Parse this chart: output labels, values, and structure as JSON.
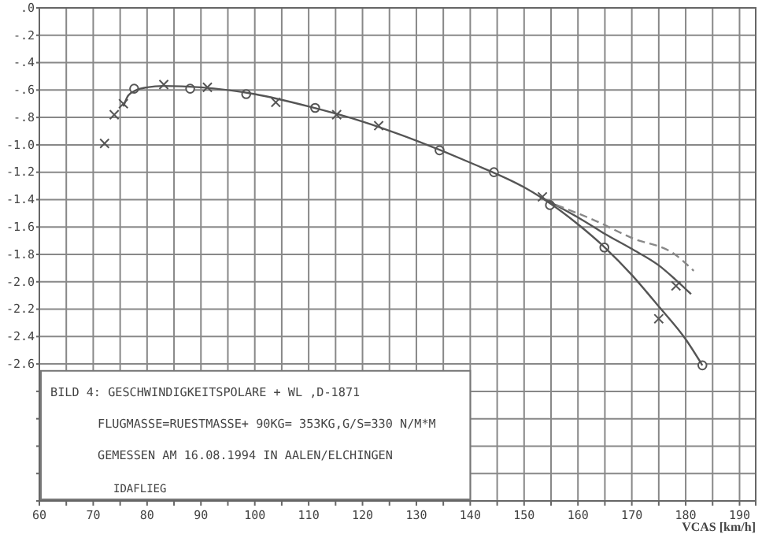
{
  "chart_data": {
    "type": "scatter",
    "xlabel": "VCAS [km/h]",
    "xlim": [
      60,
      193
    ],
    "xticks": [
      60,
      {
        "value": 65,
        "label": null
      },
      70,
      {
        "value": 75,
        "label": null
      },
      80,
      {
        "value": 85,
        "label": null
      },
      90,
      {
        "value": 95,
        "label": null
      },
      100,
      {
        "value": 105,
        "label": null
      },
      110,
      {
        "value": 115,
        "label": null
      },
      120,
      {
        "value": 125,
        "label": null
      },
      130,
      {
        "value": 135,
        "label": null
      },
      140,
      {
        "value": 145,
        "label": null
      },
      150,
      {
        "value": 155,
        "label": null
      },
      160,
      {
        "value": 165,
        "label": null
      },
      170,
      {
        "value": 175,
        "label": null
      },
      180,
      {
        "value": 185,
        "label": null
      },
      190
    ],
    "ylim": [
      -3.6,
      0
    ],
    "yticks": [
      {
        "value": 0,
        "label": ".0"
      },
      {
        "value": -0.2,
        "label": "-.2"
      },
      {
        "value": -0.4,
        "label": "-.4"
      },
      {
        "value": -0.6,
        "label": "-.6"
      },
      {
        "value": -0.8,
        "label": "-.8"
      },
      {
        "value": -1.0,
        "label": "-1.0"
      },
      {
        "value": -1.2,
        "label": "-1.2"
      },
      {
        "value": -1.4,
        "label": "-1.4"
      },
      {
        "value": -1.6,
        "label": "-1.6"
      },
      {
        "value": -1.8,
        "label": "-1.8"
      },
      {
        "value": -2.0,
        "label": "-2.0"
      },
      {
        "value": -2.2,
        "label": "-2.2"
      },
      {
        "value": -2.4,
        "label": "-2.4"
      },
      {
        "value": -2.6,
        "label": "-2.6"
      },
      {
        "value": -2.8,
        "label": null
      },
      {
        "value": -3.0,
        "label": null
      },
      {
        "value": -3.2,
        "label": null
      },
      {
        "value": -3.4,
        "label": null
      }
    ],
    "grid": true,
    "series": [
      {
        "marker": "cross",
        "color": "#555555",
        "x": [
          72.1,
          73.9,
          75.6,
          83.1,
          91.2,
          103.9,
          115.2,
          123,
          153.4,
          175,
          178.2
        ],
        "values": [
          -0.99,
          -0.78,
          -0.7,
          -0.56,
          -0.58,
          -0.69,
          -0.78,
          -0.86,
          -1.38,
          -2.27,
          -2.03
        ]
      },
      {
        "marker": "circle",
        "color": "#555555",
        "x": [
          77.6,
          88,
          98.4,
          111.2,
          134.3,
          144.4,
          154.8,
          164.9,
          183.1
        ],
        "values": [
          -0.59,
          -0.59,
          -0.63,
          -0.73,
          -1.04,
          -1.2,
          -1.44,
          -1.75,
          -2.61
        ]
      },
      {
        "type": "line",
        "marker": "none",
        "line_style": "solid",
        "color": "#555555",
        "x": [
          75.6,
          76.5,
          78,
          80,
          83,
          90,
          100,
          110,
          120,
          130,
          140,
          150,
          153,
          160,
          165,
          170,
          175,
          180,
          183.1
        ],
        "values": [
          -0.72,
          -0.64,
          -0.6,
          -0.58,
          -0.57,
          -0.58,
          -0.63,
          -0.72,
          -0.83,
          -0.97,
          -1.13,
          -1.31,
          -1.38,
          -1.58,
          -1.75,
          -1.95,
          -2.18,
          -2.42,
          -2.61
        ]
      },
      {
        "type": "line",
        "marker": "none",
        "line_style": "solid",
        "color": "#555555",
        "x": [
          153,
          160,
          165,
          170,
          175,
          178,
          181
        ],
        "values": [
          -1.38,
          -1.53,
          -1.65,
          -1.76,
          -1.88,
          -1.98,
          -2.09
        ]
      },
      {
        "type": "line",
        "marker": "none",
        "line_style": "dashed",
        "color": "#888888",
        "x": [
          156,
          163,
          170,
          178,
          181.5
        ],
        "values": [
          -1.44,
          -1.55,
          -1.68,
          -1.8,
          -1.92
        ]
      }
    ],
    "annotations": [
      "BILD  4: GESCHWINDIGKEITSPOLARE + WL ,D-1871",
      "FLUGMASSE=RUESTMASSE+ 90KG= 353KG,G/S=330 N/M*M",
      "GEMESSEN AM 16.08.1994 IN AALEN/ELCHINGEN",
      "IDAFLIEG"
    ]
  }
}
